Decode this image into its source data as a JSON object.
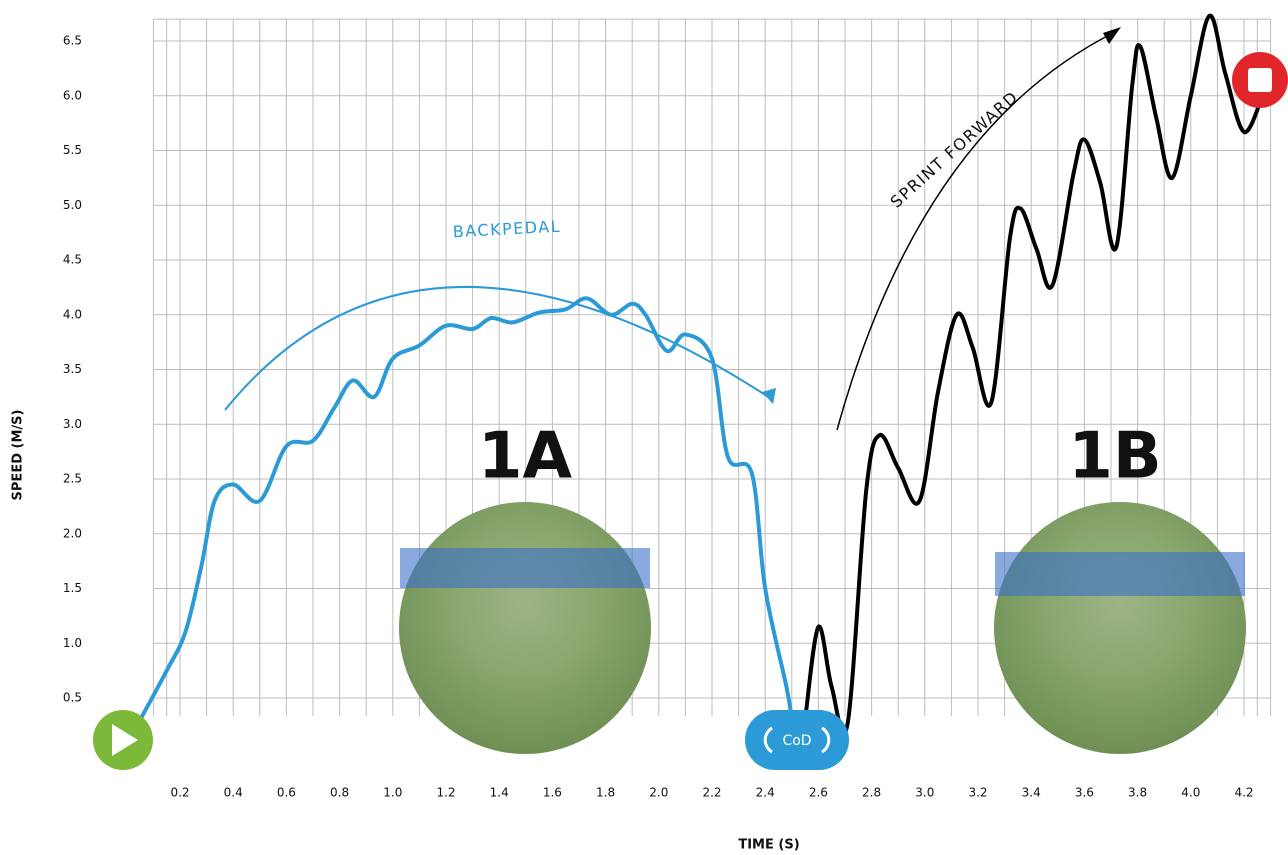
{
  "chart_data": {
    "type": "line",
    "xlabel": "TIME (S)",
    "ylabel": "SPEED (M/S)",
    "xlim": [
      0.1,
      4.3
    ],
    "ylim": [
      0.2,
      6.7
    ],
    "xticks": [
      0.2,
      0.4,
      0.6,
      0.8,
      {
        "value": 1.0,
        "label": "1.0"
      },
      1.2,
      1.4,
      1.6,
      1.8,
      {
        "value": 2.0,
        "label": "2.0"
      },
      2.2,
      2.4,
      2.6,
      2.8,
      {
        "value": 3.0,
        "label": "3.0"
      },
      3.2,
      3.4,
      3.6,
      3.8,
      {
        "value": 4.0,
        "label": "4.0"
      },
      4.2
    ],
    "yticks": [
      0.5,
      {
        "value": 1.0,
        "label": "1.0"
      },
      1.5,
      {
        "value": 2.0,
        "label": "2.0"
      },
      2.5,
      {
        "value": 3.0,
        "label": "3.0"
      },
      3.5,
      {
        "value": 4.0,
        "label": "4.0"
      },
      4.5,
      {
        "value": 5.0,
        "label": "5.0"
      },
      5.5,
      {
        "value": 6.0,
        "label": "6.0"
      },
      6.5
    ],
    "grid": true,
    "series": [
      {
        "name": "BACKPEDAL",
        "color": "#2b9ad6",
        "x": [
          0.05,
          0.15,
          0.22,
          0.28,
          0.33,
          0.4,
          0.5,
          0.6,
          0.7,
          0.78,
          0.85,
          0.93,
          1.0,
          1.1,
          1.2,
          1.3,
          1.37,
          1.45,
          1.55,
          1.65,
          1.73,
          1.82,
          1.9,
          1.95,
          2.03,
          2.1,
          2.2,
          2.26,
          2.35,
          2.4,
          2.48,
          2.5
        ],
        "values": [
          0.3,
          0.75,
          1.1,
          1.7,
          2.3,
          2.45,
          2.3,
          2.8,
          2.85,
          3.15,
          3.4,
          3.25,
          3.6,
          3.72,
          3.9,
          3.87,
          3.97,
          3.93,
          4.02,
          4.05,
          4.15,
          4.0,
          4.1,
          4.0,
          3.67,
          3.82,
          3.6,
          2.7,
          2.55,
          1.5,
          0.6,
          0.3
        ]
      },
      {
        "name": "SPRINT FORWARD",
        "color": "#000000",
        "x": [
          2.55,
          2.6,
          2.65,
          2.71,
          2.78,
          2.83,
          2.9,
          2.98,
          3.05,
          3.12,
          3.18,
          3.25,
          3.32,
          3.36,
          3.42,
          3.48,
          3.56,
          3.6,
          3.66,
          3.72,
          3.78,
          3.81,
          3.87,
          3.93,
          4.0,
          4.07,
          4.13,
          4.2,
          4.27
        ],
        "values": [
          0.3,
          1.15,
          0.6,
          0.27,
          2.4,
          2.9,
          2.6,
          2.3,
          3.3,
          4.0,
          3.7,
          3.2,
          4.7,
          4.97,
          4.6,
          4.27,
          5.3,
          5.6,
          5.2,
          4.62,
          6.1,
          6.45,
          5.8,
          5.25,
          6.0,
          6.73,
          6.2,
          5.67,
          6.0
        ]
      }
    ],
    "annotations": [
      "1A",
      "1B",
      "CoD"
    ]
  }
}
